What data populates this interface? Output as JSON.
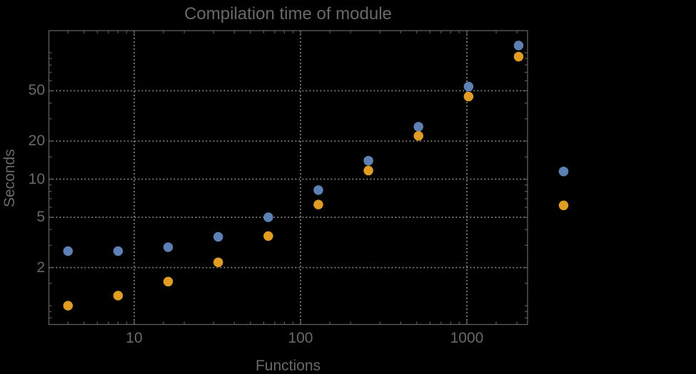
{
  "window": {
    "background": "#000000"
  },
  "chart_data": {
    "type": "scatter",
    "title": "Compilation time of module",
    "xlabel": "Functions",
    "ylabel": "Seconds",
    "xscale": "log",
    "yscale": "log",
    "xlim": [
      3.07,
      2317
    ],
    "ylim": [
      0.71,
      149.4
    ],
    "grid": {
      "enabled": true,
      "style": "dotted",
      "color": "#8f8f8f",
      "x_values": [
        10,
        100,
        1000
      ],
      "y_values": [
        2,
        5,
        10,
        20,
        50
      ]
    },
    "x_ticks": {
      "values": [
        10,
        100,
        1000
      ],
      "labels": [
        "10",
        "100",
        "1000"
      ]
    },
    "y_ticks": {
      "values": [
        2,
        5,
        10,
        20,
        50
      ],
      "labels": [
        "2",
        "5",
        "10",
        "20",
        "50"
      ]
    },
    "x": [
      4,
      8,
      16,
      32,
      64,
      128,
      256,
      512,
      1024,
      2048
    ],
    "series": [
      {
        "name": "series-1",
        "color": "#5e81b5",
        "values": [
          2.7,
          2.7,
          2.9,
          3.5,
          5.0,
          8.2,
          14,
          26,
          54,
          114
        ]
      },
      {
        "name": "series-2",
        "color": "#e19c24",
        "values": [
          1.0,
          1.2,
          1.55,
          2.2,
          3.55,
          6.3,
          11.7,
          22,
          45,
          93
        ]
      }
    ],
    "legend": {
      "position": "right-of-plot",
      "labels_visible": false,
      "entries": [
        {
          "series": "series-1",
          "marker_color": "#5e81b5"
        },
        {
          "series": "series-2",
          "marker_color": "#e19c24"
        }
      ]
    },
    "styles": {
      "text_color": "#696969",
      "frame_color": "#606060",
      "marker_diameter_px": 13.5
    }
  }
}
